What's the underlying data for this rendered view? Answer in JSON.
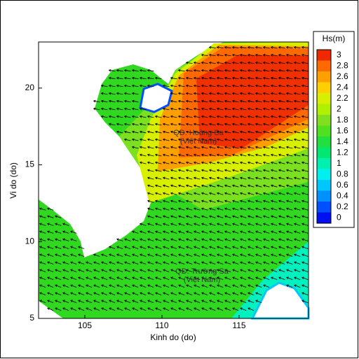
{
  "chart_data": {
    "type": "heatmap",
    "xlabel": "Kinh do (do)",
    "ylabel": "Vi do (do)",
    "xlim": [
      102,
      119.5
    ],
    "ylim": [
      5,
      23
    ],
    "xticks": [
      105,
      110,
      115
    ],
    "yticks": [
      5,
      10,
      15,
      20
    ],
    "colorbar": {
      "title": "Hs(m)",
      "ticks": [
        0,
        0.2,
        0.4,
        0.6,
        0.8,
        1,
        1.2,
        1.4,
        1.6,
        1.8,
        2,
        2.2,
        2.4,
        2.6,
        2.8,
        3
      ],
      "colors": [
        "#0010f0",
        "#0050ff",
        "#0090ff",
        "#00c8ff",
        "#00f0f0",
        "#00f0b0",
        "#00e870",
        "#20e040",
        "#50e020",
        "#80e020",
        "#b0f000",
        "#d8f000",
        "#ffd000",
        "#ffa000",
        "#ff6a00",
        "#f02800"
      ]
    },
    "annotations": [
      "QĐ. Hoàng Sa",
      "(Việt Nam)",
      "QĐ. Trường Sa",
      "(Việt Nam)"
    ]
  }
}
